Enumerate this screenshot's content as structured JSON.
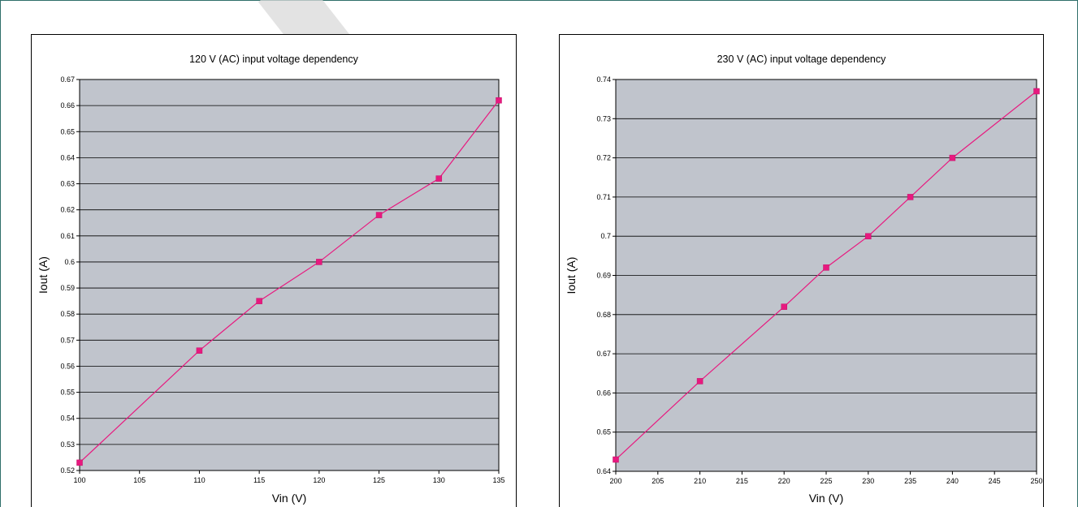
{
  "chart_data": [
    {
      "type": "line",
      "title": "120 V (AC) input voltage dependency",
      "xlabel": "Vin (V)",
      "ylabel": "Iout (A)",
      "x": [
        100,
        110,
        115,
        120,
        125,
        130,
        135
      ],
      "series": [
        {
          "values": [
            0.523,
            0.566,
            0.585,
            0.6,
            0.618,
            0.632,
            0.662
          ]
        }
      ],
      "xlim": [
        100,
        135
      ],
      "ylim": [
        0.52,
        0.67
      ],
      "xticks": [
        "100",
        "105",
        "110",
        "115",
        "120",
        "125",
        "130",
        "135"
      ],
      "yticks": [
        "0.52",
        "0.53",
        "0.54",
        "0.55",
        "0.56",
        "0.57",
        "0.58",
        "0.59",
        "0.6",
        "0.61",
        "0.62",
        "0.63",
        "0.64",
        "0.65",
        "0.66",
        "0.67"
      ],
      "grid": true,
      "colors": {
        "plot_bg": "#c0c4cc",
        "series": "#e8197f"
      }
    },
    {
      "type": "line",
      "title": "230 V (AC) input voltage dependency",
      "xlabel": "Vin (V)",
      "ylabel": "Iout (A)",
      "x": [
        200,
        210,
        220,
        225,
        230,
        235,
        240,
        250
      ],
      "series": [
        {
          "values": [
            0.643,
            0.663,
            0.682,
            0.692,
            0.7,
            0.71,
            0.72,
            0.737
          ]
        }
      ],
      "xlim": [
        200,
        250
      ],
      "ylim": [
        0.64,
        0.74
      ],
      "xticks": [
        "200",
        "205",
        "210",
        "215",
        "220",
        "225",
        "230",
        "235",
        "240",
        "245",
        "250"
      ],
      "yticks": [
        "0.64",
        "0.65",
        "0.66",
        "0.67",
        "0.68",
        "0.69",
        "0.7",
        "0.71",
        "0.72",
        "0.73",
        "0.74"
      ],
      "grid": true,
      "colors": {
        "plot_bg": "#c0c4cc",
        "series": "#e8197f"
      }
    }
  ]
}
